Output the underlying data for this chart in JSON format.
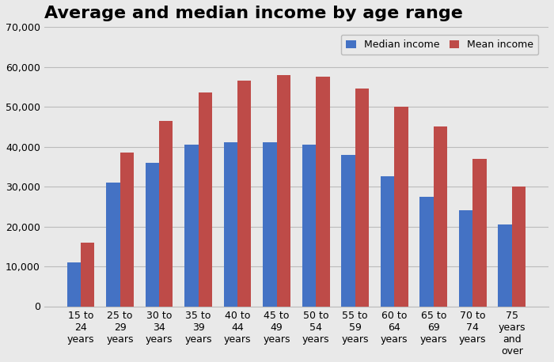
{
  "title": "Average and median income by age range",
  "categories": [
    "15 to\n24\nyears",
    "25 to\n29\nyears",
    "30 to\n34\nyears",
    "35 to\n39\nyears",
    "40 to\n44\nyears",
    "45 to\n49\nyears",
    "50 to\n54\nyears",
    "55 to\n59\nyears",
    "60 to\n64\nyears",
    "65 to\n69\nyears",
    "70 to\n74\nyears",
    "75\nyears\nand\nover"
  ],
  "median_income": [
    11000,
    31000,
    36000,
    40500,
    41000,
    41000,
    40500,
    38000,
    32500,
    27500,
    24000,
    20500
  ],
  "mean_income": [
    16000,
    38500,
    46500,
    53500,
    56500,
    58000,
    57500,
    54500,
    50000,
    45000,
    37000,
    30000
  ],
  "median_color": "#4472C4",
  "mean_color": "#BE4B48",
  "background_color": "#E9E9E9",
  "grid_color": "#BBBBBB",
  "ylim": [
    0,
    70000
  ],
  "yticks": [
    0,
    10000,
    20000,
    30000,
    40000,
    50000,
    60000,
    70000
  ],
  "legend_labels": [
    "Median income",
    "Mean income"
  ],
  "title_fontsize": 16,
  "tick_fontsize": 9,
  "legend_fontsize": 9
}
